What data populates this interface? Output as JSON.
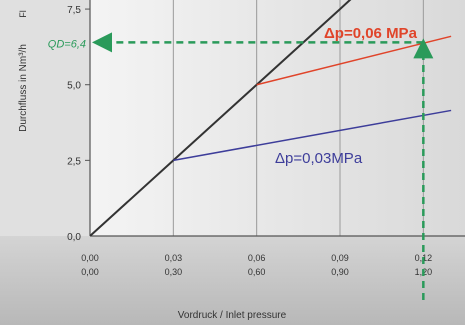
{
  "chart_data": {
    "type": "line",
    "ylabel": "Durchfluss in Nm³/h",
    "ylabel_extra": "Fl",
    "xlabel": "Vordruck / Inlet pressure",
    "yticks": [
      {
        "value": 0,
        "label": "0,0"
      },
      {
        "value": 2.5,
        "label": "2,5"
      },
      {
        "value": 5,
        "label": "5,0"
      },
      {
        "value": 7.5,
        "label": "7,5"
      }
    ],
    "xticks": [
      {
        "value": 0,
        "label_mpa": "0,00",
        "label_bar": "0,00"
      },
      {
        "value": 0.03,
        "label_mpa": "0,03",
        "label_bar": "0,30"
      },
      {
        "value": 0.06,
        "label_mpa": "0,06",
        "label_bar": "0,60"
      },
      {
        "value": 0.09,
        "label_mpa": "0,09",
        "label_bar": "0,90"
      },
      {
        "value": 0.12,
        "label_mpa": "0,12",
        "label_bar": "1,20"
      }
    ],
    "xlim": [
      0,
      0.135
    ],
    "ylim": [
      0,
      7.8
    ],
    "grid": "vertical",
    "series": [
      {
        "x": [
          0,
          0.03,
          0.06,
          0.09,
          0.115
        ],
        "y": [
          0,
          2.5,
          5.0,
          7.5,
          9.6
        ],
        "color": "#333333"
      },
      {
        "name": "Δp=0,06 MPa",
        "x": [
          0.06,
          0.13
        ],
        "y": [
          5.0,
          6.6
        ],
        "color": "#e0442a"
      },
      {
        "name": "Δp=0,03MPa",
        "x": [
          0.03,
          0.13
        ],
        "y": [
          2.5,
          4.15
        ],
        "color": "#3d3d9a"
      }
    ],
    "annotation": {
      "label": "QD=6,4",
      "x": 0.12,
      "y": 6.4,
      "color": "#2a9a5a"
    }
  }
}
